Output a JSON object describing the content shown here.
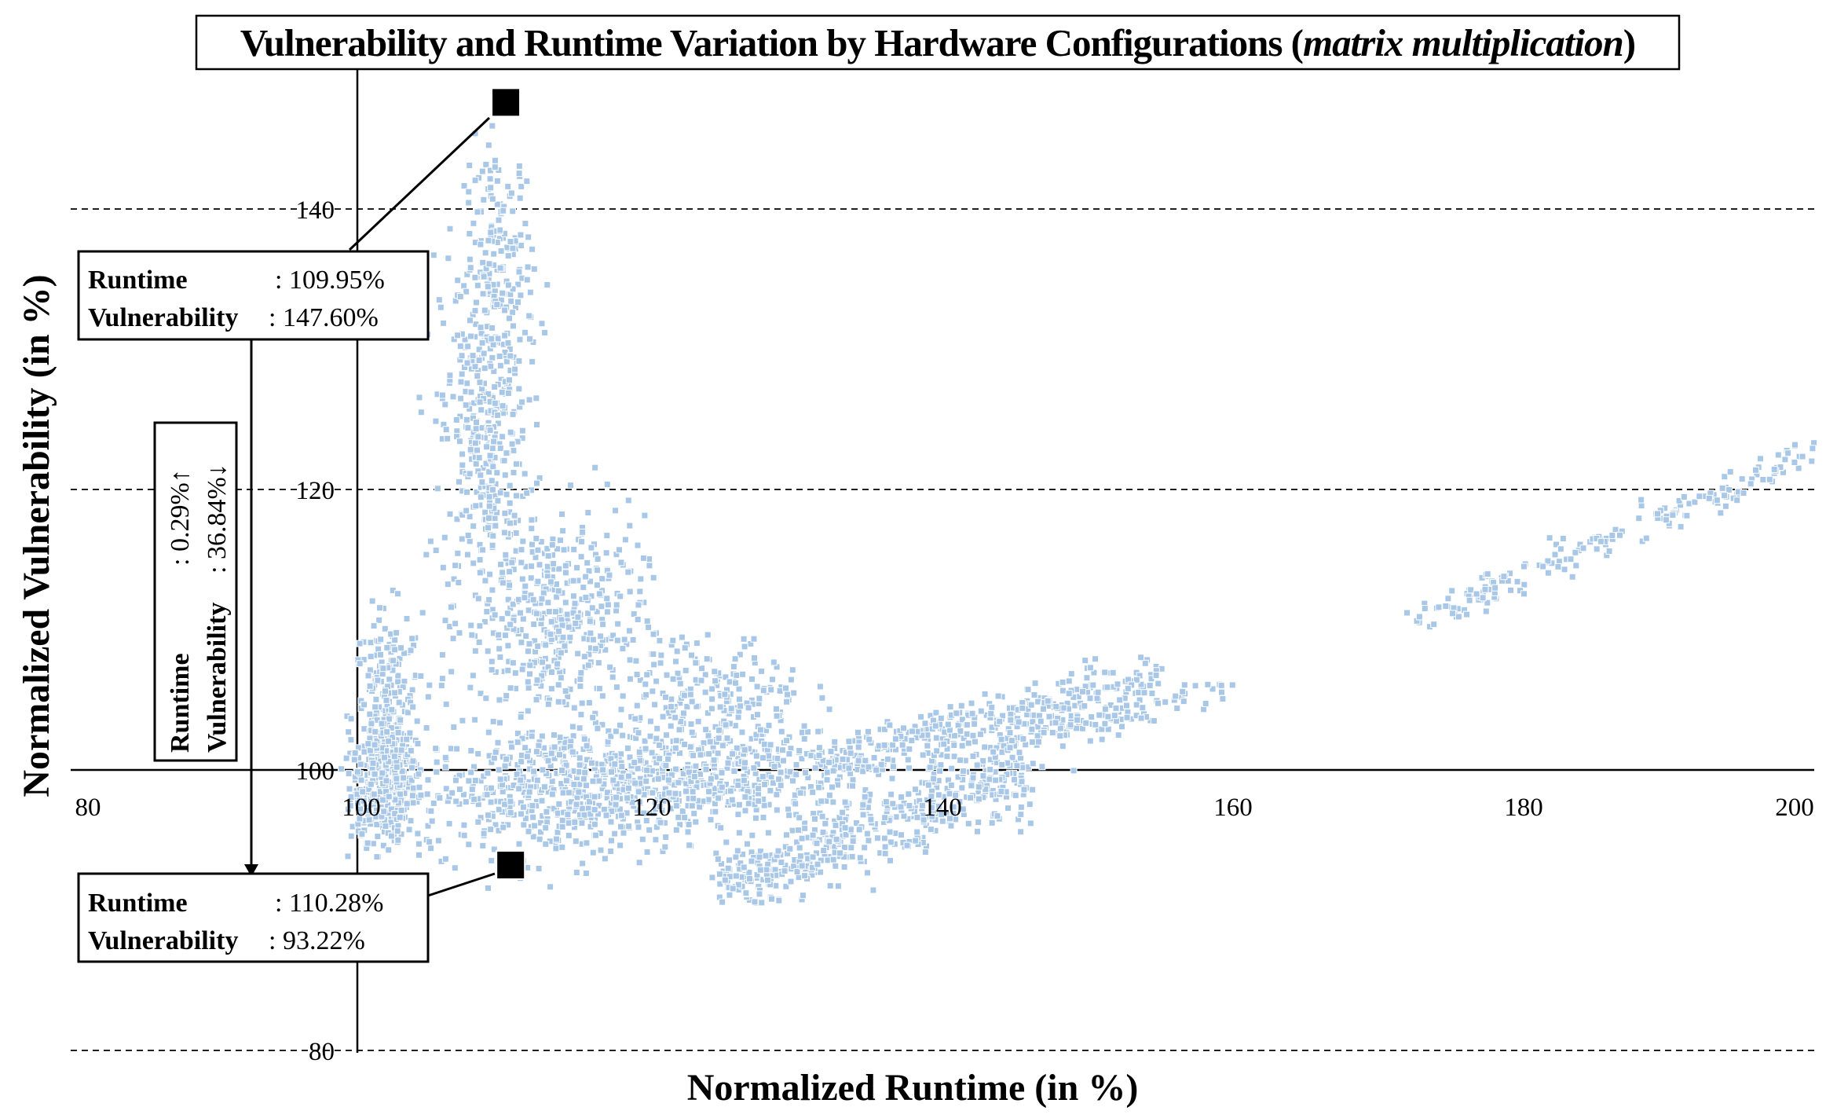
{
  "chart_data": {
    "type": "scatter",
    "title": {
      "prefix": "Vulnerability and Runtime Variation by Hardware Configurations (",
      "italic": "matrix multiplication",
      "suffix": ")"
    },
    "xlabel": "Normalized Runtime (in %)",
    "ylabel": "Normalized Vulnerability (in %)",
    "xlim": [
      80,
      200
    ],
    "ylim": [
      78,
      150
    ],
    "xticks": [
      "80",
      "100",
      "120",
      "140",
      "160",
      "180",
      "200"
    ],
    "yticks": [
      "80",
      "100",
      "120",
      "140"
    ],
    "grid_y": [
      80,
      120,
      140
    ],
    "point_color": "#a9c8e8",
    "highlight_color": "#000000",
    "clusters": [
      {
        "shape": "blob",
        "x": 101.5,
        "y": 98.8,
        "sx": 1.1,
        "sy": 1.9,
        "n": 380
      },
      {
        "shape": "blob",
        "x": 101.8,
        "y": 103.5,
        "sx": 1.2,
        "sy": 3.8,
        "n": 260
      },
      {
        "shape": "blob",
        "x": 108.5,
        "y": 124.0,
        "sx": 1.5,
        "sy": 6.5,
        "n": 380
      },
      {
        "shape": "blob",
        "x": 109.5,
        "y": 136.0,
        "sx": 1.2,
        "sy": 4.5,
        "n": 160
      },
      {
        "shape": "blob",
        "x": 113.5,
        "y": 110.5,
        "sx": 3.0,
        "sy": 3.8,
        "n": 420
      },
      {
        "shape": "blob",
        "x": 114.0,
        "y": 98.5,
        "sx": 5.0,
        "sy": 2.3,
        "n": 600
      },
      {
        "shape": "blob",
        "x": 124.0,
        "y": 100.2,
        "sx": 4.5,
        "sy": 2.0,
        "n": 420
      },
      {
        "shape": "blob",
        "x": 124.5,
        "y": 105.5,
        "sx": 3.0,
        "sy": 2.0,
        "n": 160
      },
      {
        "shape": "line",
        "x0": 124.5,
        "y0": 91.5,
        "x1": 146.0,
        "y1": 100.0,
        "spread": 1.5,
        "n": 520
      },
      {
        "shape": "line",
        "x0": 131.0,
        "y0": 100.0,
        "x1": 155.0,
        "y1": 106.8,
        "spread": 1.0,
        "n": 360
      },
      {
        "shape": "line",
        "x0": 144.0,
        "y0": 101.5,
        "x1": 160.0,
        "y1": 106.0,
        "spread": 0.6,
        "n": 90
      },
      {
        "shape": "line",
        "x0": 172.0,
        "y0": 110.5,
        "x1": 200.0,
        "y1": 122.5,
        "spread": 0.6,
        "n": 190
      }
    ],
    "highlight_points": [
      {
        "label": "max",
        "x": 109.95,
        "y": 147.6
      },
      {
        "label": "min",
        "x": 110.28,
        "y": 93.22
      }
    ],
    "annotations": [
      {
        "runtime_label": "Runtime",
        "runtime_value": ": 109.95%",
        "vuln_label": "Vulnerability",
        "vuln_value": ": 147.60%"
      },
      {
        "runtime_label": "Runtime",
        "runtime_value": ": 110.28%",
        "vuln_label": "Vulnerability",
        "vuln_value": ":   93.22%"
      }
    ],
    "delta_box": {
      "runtime_label": "Runtime",
      "runtime_value": ":  0.29%↑",
      "vuln_label": "Vulnerability",
      "vuln_value": ": 36.84%↓"
    }
  }
}
